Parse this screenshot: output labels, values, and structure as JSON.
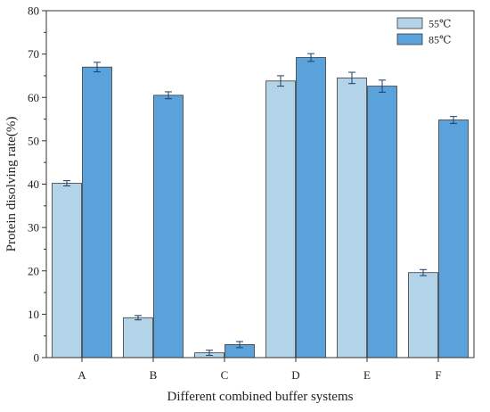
{
  "chart_data": {
    "type": "bar",
    "categories": [
      "A",
      "B",
      "C",
      "D",
      "E",
      "F"
    ],
    "series": [
      {
        "name": "55℃",
        "color": "#b3d3e8",
        "values": [
          40.2,
          9.2,
          1.1,
          63.8,
          64.5,
          19.6
        ],
        "errors": [
          0.6,
          0.5,
          0.6,
          1.2,
          1.3,
          0.7
        ]
      },
      {
        "name": "85℃",
        "color": "#5aa2dc",
        "values": [
          67.0,
          60.5,
          3.0,
          69.2,
          62.6,
          54.8
        ],
        "errors": [
          1.1,
          0.8,
          0.7,
          0.9,
          1.4,
          0.8
        ]
      }
    ],
    "title": "",
    "xlabel": "Different combined buffer systems",
    "ylabel": "Protein disolving rate(%)",
    "ylim": [
      0,
      80
    ],
    "yticks": [
      "0",
      "10",
      "20",
      "30",
      "40",
      "50",
      "60",
      "70",
      "80"
    ],
    "grid": false,
    "legend_position": "top-right"
  }
}
